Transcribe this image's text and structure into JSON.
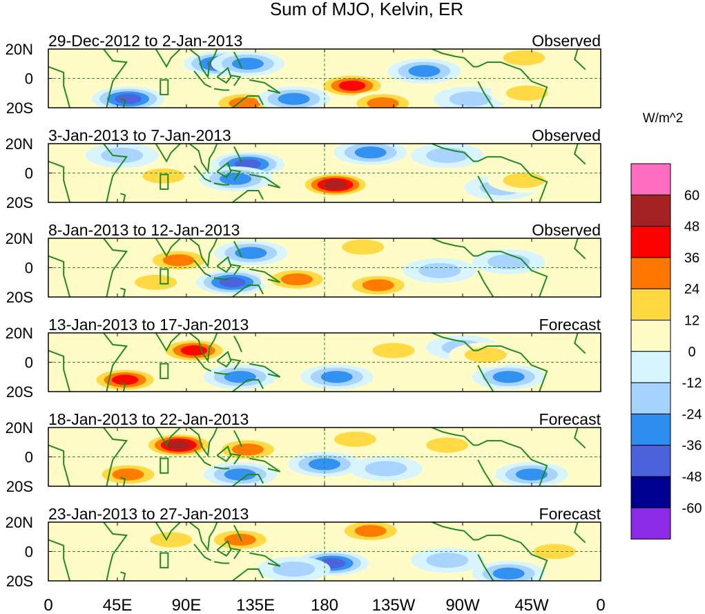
{
  "chart_data": {
    "type": "heatmap",
    "title": "Sum of MJO, Kelvin, ER",
    "colorbar": {
      "unit_label": "W/m^2",
      "levels": [
        "60",
        "48",
        "36",
        "24",
        "12",
        "0",
        "-12",
        "-24",
        "-36",
        "-48",
        "-60"
      ],
      "colors": [
        "#ff6ec0",
        "#a52222",
        "#ff0000",
        "#ff7700",
        "#ffd840",
        "#fffcc8",
        "#d6f5ff",
        "#a6d2ff",
        "#2e8ef0",
        "#4a62dc",
        "#000090",
        "#8b2be8"
      ]
    },
    "x_axis": {
      "tick_labels": [
        "0",
        "45E",
        "90E",
        "135E",
        "180",
        "135W",
        "90W",
        "45W",
        "0"
      ],
      "tick_lon": [
        0,
        45,
        90,
        135,
        180,
        225,
        270,
        315,
        360
      ],
      "range": [
        0,
        360
      ]
    },
    "y_axis": {
      "tick_labels": [
        "20N",
        "0",
        "20S"
      ],
      "tick_lat": [
        20,
        0,
        -20
      ],
      "range": [
        -20,
        20
      ]
    },
    "panels": [
      {
        "period": "29-Dec-2012 to 2-Jan-2013",
        "type_label": "Observed",
        "anomalies": [
          {
            "lon": 52,
            "lat": -14,
            "value": -46
          },
          {
            "lon": 112,
            "lat": 10,
            "value": -38
          },
          {
            "lon": 130,
            "lat": 10,
            "value": -28
          },
          {
            "lon": 198,
            "lat": -5,
            "value": 42
          },
          {
            "lon": 218,
            "lat": -17,
            "value": 34
          },
          {
            "lon": 128,
            "lat": -17,
            "value": 28
          },
          {
            "lon": 245,
            "lat": 5,
            "value": -26
          },
          {
            "lon": 160,
            "lat": -14,
            "value": -26
          },
          {
            "lon": 275,
            "lat": -14,
            "value": -22
          },
          {
            "lon": 310,
            "lat": 14,
            "value": 16
          },
          {
            "lon": 312,
            "lat": -10,
            "value": 14
          }
        ]
      },
      {
        "period": "3-Jan-2013 to 7-Jan-2013",
        "type_label": "Observed",
        "anomalies": [
          {
            "lon": 187,
            "lat": -8,
            "value": 50
          },
          {
            "lon": 130,
            "lat": 6,
            "value": -40
          },
          {
            "lon": 122,
            "lat": -4,
            "value": -30
          },
          {
            "lon": 210,
            "lat": 14,
            "value": -28
          },
          {
            "lon": 260,
            "lat": 12,
            "value": -22
          },
          {
            "lon": 75,
            "lat": -2,
            "value": 14
          },
          {
            "lon": 48,
            "lat": 12,
            "value": -20
          },
          {
            "lon": 295,
            "lat": -10,
            "value": -14
          },
          {
            "lon": 310,
            "lat": -5,
            "value": 14
          }
        ]
      },
      {
        "period": "8-Jan-2013 to 12-Jan-2013",
        "type_label": "Observed",
        "anomalies": [
          {
            "lon": 85,
            "lat": 5,
            "value": 26
          },
          {
            "lon": 120,
            "lat": -10,
            "value": -38
          },
          {
            "lon": 132,
            "lat": 10,
            "value": -32
          },
          {
            "lon": 162,
            "lat": -8,
            "value": 30
          },
          {
            "lon": 215,
            "lat": -12,
            "value": 30
          },
          {
            "lon": 70,
            "lat": -10,
            "value": 18
          },
          {
            "lon": 255,
            "lat": -2,
            "value": -16
          },
          {
            "lon": 205,
            "lat": 14,
            "value": 12
          },
          {
            "lon": 300,
            "lat": 4,
            "value": -14
          }
        ]
      },
      {
        "period": "13-Jan-2013 to 17-Jan-2013",
        "type_label": "Forecast",
        "anomalies": [
          {
            "lon": 95,
            "lat": 8,
            "value": 44
          },
          {
            "lon": 50,
            "lat": -12,
            "value": 42
          },
          {
            "lon": 125,
            "lat": -10,
            "value": -34
          },
          {
            "lon": 188,
            "lat": -10,
            "value": -30
          },
          {
            "lon": 225,
            "lat": 8,
            "value": 14
          },
          {
            "lon": 300,
            "lat": -10,
            "value": -24
          },
          {
            "lon": 270,
            "lat": 10,
            "value": -16
          },
          {
            "lon": 285,
            "lat": 5,
            "value": 12
          }
        ]
      },
      {
        "period": "18-Jan-2013 to 22-Jan-2013",
        "type_label": "Forecast",
        "anomalies": [
          {
            "lon": 85,
            "lat": 8,
            "value": 50
          },
          {
            "lon": 130,
            "lat": 5,
            "value": 30
          },
          {
            "lon": 52,
            "lat": -12,
            "value": 28
          },
          {
            "lon": 125,
            "lat": -12,
            "value": -28
          },
          {
            "lon": 180,
            "lat": -5,
            "value": -26
          },
          {
            "lon": 220,
            "lat": -8,
            "value": -22
          },
          {
            "lon": 315,
            "lat": -12,
            "value": -30
          },
          {
            "lon": 200,
            "lat": 12,
            "value": 14
          },
          {
            "lon": 260,
            "lat": 8,
            "value": 12
          }
        ]
      },
      {
        "period": "23-Jan-2013 to 27-Jan-2013",
        "type_label": "Forecast",
        "anomalies": [
          {
            "lon": 125,
            "lat": 8,
            "value": 34
          },
          {
            "lon": 210,
            "lat": 14,
            "value": 30
          },
          {
            "lon": 185,
            "lat": -8,
            "value": -44
          },
          {
            "lon": 160,
            "lat": -12,
            "value": -22
          },
          {
            "lon": 300,
            "lat": -15,
            "value": -26
          },
          {
            "lon": 80,
            "lat": 8,
            "value": 14
          },
          {
            "lon": 260,
            "lat": -6,
            "value": -12
          },
          {
            "lon": 330,
            "lat": 0,
            "value": 12
          }
        ]
      }
    ]
  }
}
